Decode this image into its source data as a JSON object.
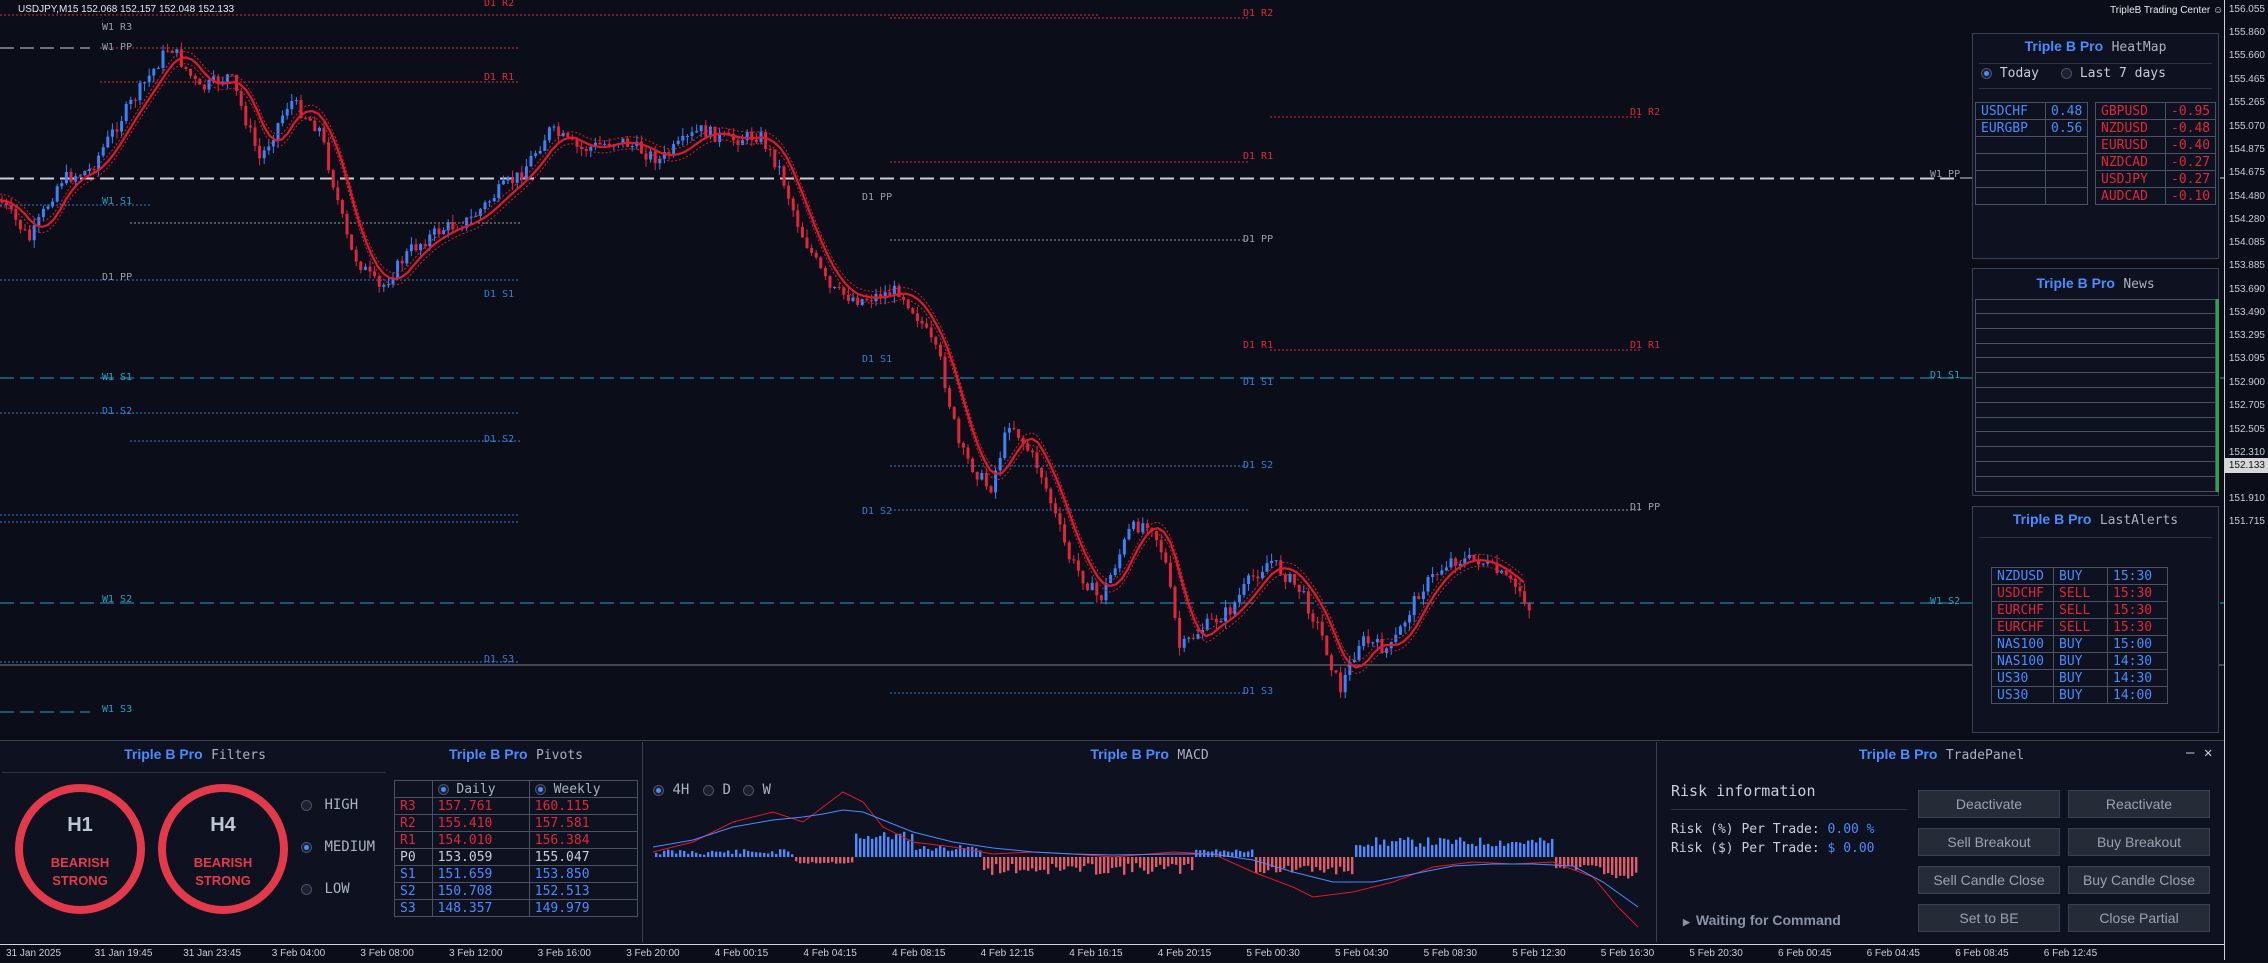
{
  "chart": {
    "symbol_info": "USDJPY,M15  152.068 152.157 152.048 152.133",
    "platform_title": "TripleB Trading Center",
    "price_labels": [
      "156.055",
      "155.860",
      "155.660",
      "155.465",
      "155.265",
      "155.070",
      "154.875",
      "154.675",
      "154.480",
      "154.280",
      "154.085",
      "153.885",
      "153.690",
      "153.490",
      "153.295",
      "153.095",
      "152.900",
      "152.705",
      "152.505",
      "152.310",
      "151.910",
      "151.715"
    ],
    "current_price": "152.133",
    "time_labels": [
      "31 Jan 2025",
      "31 Jan 19:45",
      "31 Jan 23:45",
      "3 Feb 04:00",
      "3 Feb 08:00",
      "3 Feb 12:00",
      "3 Feb 16:00",
      "3 Feb 20:00",
      "4 Feb 00:15",
      "4 Feb 04:15",
      "4 Feb 08:15",
      "4 Feb 12:15",
      "4 Feb 16:15",
      "4 Feb 20:15",
      "5 Feb 00:30",
      "5 Feb 04:30",
      "5 Feb 08:30",
      "5 Feb 12:30",
      "5 Feb 16:30",
      "5 Feb 20:30",
      "6 Feb 00:45",
      "6 Feb 04:45",
      "6 Feb 08:45",
      "6 Feb 12:45"
    ],
    "level_labels": [
      "D1 R2",
      "W1 R3",
      "W1 PP",
      "D1 R1",
      "D1 R2",
      "D1 R1",
      "D1 R2",
      "D1 R1",
      "W1 PP",
      "W1 S1",
      "D1 PP",
      "D1 PP",
      "D1 S1",
      "D1 PP",
      "D1 R1",
      "D1 S1",
      "D1 S1",
      "W1 S1",
      "D1 S1",
      "W1 S2",
      "D1 S2",
      "D1 S2",
      "D1 S2",
      "D1 PP",
      "D1 S2",
      "W1 S2",
      "D1 S3",
      "D1 S3",
      "W1 S3"
    ],
    "colors": {
      "bull": "#3b82f6",
      "bear": "#e0263a",
      "ma": "#e0182d",
      "resistance": "#e0263a",
      "support": "#2f7fd6",
      "weekly_support": "#1fa3c4",
      "pivot": "#9aa0aa"
    }
  },
  "heatmap": {
    "brand": "Triple B Pro",
    "name": "HeatMap",
    "options": [
      {
        "label": "Today",
        "selected": true
      },
      {
        "label": "Last 7 days",
        "selected": false
      }
    ],
    "positive": [
      {
        "pair": "USDCHF",
        "value": "0.48"
      },
      {
        "pair": "EURGBP",
        "value": "0.56"
      }
    ],
    "negative": [
      {
        "pair": "GBPUSD",
        "value": "-0.95"
      },
      {
        "pair": "NZDUSD",
        "value": "-0.48"
      },
      {
        "pair": "EURUSD",
        "value": "-0.40"
      },
      {
        "pair": "NZDCAD",
        "value": "-0.27"
      },
      {
        "pair": "USDJPY",
        "value": "-0.27"
      },
      {
        "pair": "AUDCAD",
        "value": "-0.10"
      }
    ]
  },
  "news": {
    "brand": "Triple B Pro",
    "name": "News"
  },
  "alerts": {
    "brand": "Triple B Pro",
    "name": "LastAlerts",
    "rows": [
      {
        "pair": "NZDUSD",
        "side": "BUY",
        "time": "15:30"
      },
      {
        "pair": "USDCHF",
        "side": "SELL",
        "time": "15:30"
      },
      {
        "pair": "EURCHF",
        "side": "SELL",
        "time": "15:30"
      },
      {
        "pair": "EURCHF",
        "side": "SELL",
        "time": "15:30"
      },
      {
        "pair": "NAS100",
        "side": "BUY",
        "time": "15:00"
      },
      {
        "pair": "NAS100",
        "side": "BUY",
        "time": "14:30"
      },
      {
        "pair": "US30",
        "side": "BUY",
        "time": "14:30"
      },
      {
        "pair": "US30",
        "side": "BUY",
        "time": "14:00"
      }
    ]
  },
  "filters": {
    "brand": "Triple B Pro",
    "name": "Filters",
    "gauges": [
      {
        "tf": "H1",
        "line1": "BEARISH",
        "line2": "STRONG"
      },
      {
        "tf": "H4",
        "line1": "BEARISH",
        "line2": "STRONG"
      }
    ],
    "levels": [
      {
        "label": "HIGH",
        "selected": false
      },
      {
        "label": "MEDIUM",
        "selected": true
      },
      {
        "label": "LOW",
        "selected": false
      }
    ]
  },
  "pivots": {
    "brand": "Triple B Pro",
    "name": "Pivots",
    "col_daily": "Daily",
    "col_weekly": "Weekly",
    "rows": [
      {
        "name": "R3",
        "daily": "157.761",
        "weekly": "160.115"
      },
      {
        "name": "R2",
        "daily": "155.410",
        "weekly": "157.581"
      },
      {
        "name": "R1",
        "daily": "154.010",
        "weekly": "156.384"
      },
      {
        "name": "P0",
        "daily": "153.059",
        "weekly": "155.047"
      },
      {
        "name": "S1",
        "daily": "151.659",
        "weekly": "153.850"
      },
      {
        "name": "S2",
        "daily": "150.708",
        "weekly": "152.513"
      },
      {
        "name": "S3",
        "daily": "148.357",
        "weekly": "149.979"
      }
    ]
  },
  "macd": {
    "brand": "Triple B Pro",
    "name": "MACD",
    "timeframes": [
      {
        "label": "4H",
        "selected": true
      },
      {
        "label": "D",
        "selected": false
      },
      {
        "label": "W",
        "selected": false
      }
    ]
  },
  "trade": {
    "brand": "Triple B Pro",
    "name": "TradePanel",
    "risk_title": "Risk information",
    "risk_pct_label": "Risk (%) Per Trade:",
    "risk_pct_value": "0.00 %",
    "risk_usd_label": "Risk ($) Per Trade:",
    "risk_usd_value": "$ 0.00",
    "status": "Waiting for Command",
    "buttons": [
      [
        "Deactivate",
        "Reactivate"
      ],
      [
        "Sell Breakout",
        "Buy Breakout"
      ],
      [
        "Sell Candle Close",
        "Buy Candle Close"
      ],
      [
        "Set to BE",
        "Close Partial"
      ]
    ],
    "minimize": "—",
    "close": "✕"
  }
}
